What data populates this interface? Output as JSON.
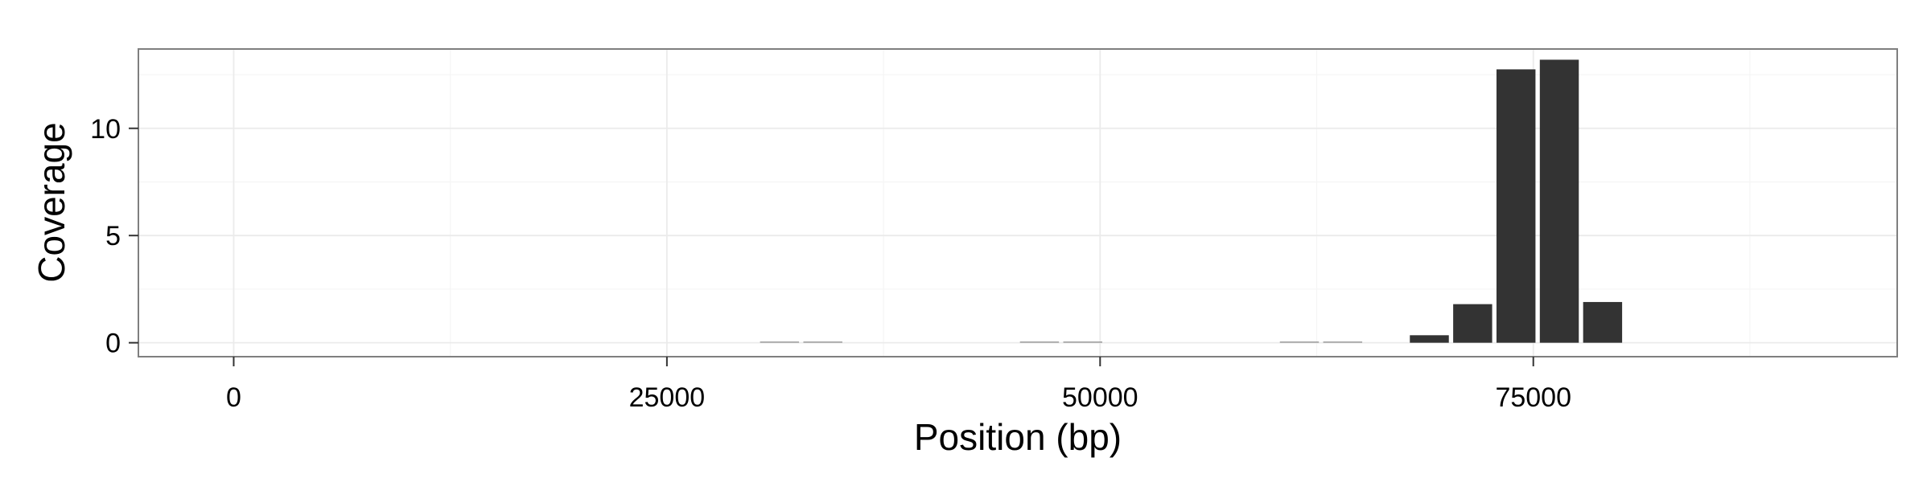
{
  "chart_data": {
    "type": "bar",
    "title": "",
    "xlabel": "Position (bp)",
    "ylabel": "Coverage",
    "xlim": [
      -5500,
      96000
    ],
    "ylim": [
      -0.65,
      13.7
    ],
    "x_ticks": [
      {
        "value": 0,
        "label": "0"
      },
      {
        "value": 25000,
        "label": "25000"
      },
      {
        "value": 50000,
        "label": "50000"
      },
      {
        "value": 75000,
        "label": "75000"
      }
    ],
    "y_ticks": [
      {
        "value": 0,
        "label": "0"
      },
      {
        "value": 5,
        "label": "5"
      },
      {
        "value": 10,
        "label": "10"
      }
    ],
    "bin_width": 2500,
    "series": [
      {
        "x": [
          31500,
          34000,
          46500,
          49000,
          61500,
          64000,
          69000,
          71500,
          74000,
          76500,
          79000
        ],
        "values": [
          0.05,
          0.05,
          0.05,
          0.05,
          0.05,
          0.05,
          0.35,
          1.8,
          12.75,
          13.2,
          1.9
        ]
      }
    ],
    "grid": true,
    "legend": "none",
    "colors": {
      "bar": "#333333",
      "panel_border": "#7f7f7f",
      "grid_major": "#ebebeb",
      "grid_minor": "#f5f5f5",
      "background": "#ffffff"
    }
  }
}
